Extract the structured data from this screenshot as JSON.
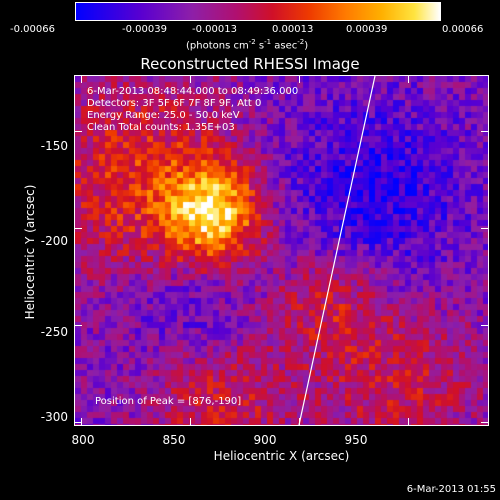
{
  "colorbar": {
    "tick_labels": [
      "-0.00066",
      "-0.00039",
      "-0.00013",
      "0.00013",
      "0.00039",
      "0.00066"
    ],
    "units_prefix": "(photons cm",
    "units_exp1": "-2",
    "units_mid1": " s",
    "units_exp2": "-1",
    "units_mid2": " asec",
    "units_exp3": "-2",
    "units_suffix": ")"
  },
  "plot": {
    "title": "Reconstructed RHESSI Image",
    "info_lines": [
      "6-Mar-2013 08:48:44.000 to 08:49:36.000",
      "Detectors: 3F 5F 6F 7F 8F 9F, Att 0",
      "Energy Range: 25.0 - 50.0 keV",
      "Clean     Total counts: 1.35E+03"
    ],
    "peak_text": "Position of Peak = [876,-190]",
    "xlabel": "Heliocentric X (arcsec)",
    "ylabel": "Heliocentric Y (arcsec)",
    "xticks": [
      "800",
      "850",
      "900",
      "950"
    ],
    "yticks": [
      "-150",
      "-200",
      "-250",
      "-300"
    ],
    "x_values": [
      800,
      850,
      900,
      950
    ],
    "y_values": [
      -150,
      -200,
      -250,
      -300
    ],
    "xlim": [
      797,
      987
    ],
    "ylim": [
      -302,
      -121
    ]
  },
  "footer": {
    "date": "6-Mar-2013 01:55"
  }
}
